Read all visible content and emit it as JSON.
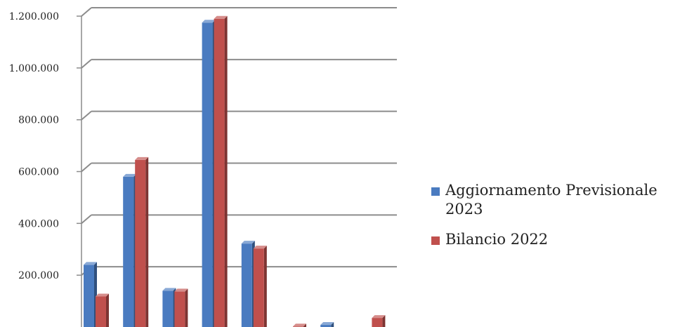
{
  "chart_data": {
    "type": "bar",
    "categories": [
      "",
      "",
      "",
      "",
      "",
      "",
      "",
      ""
    ],
    "series": [
      {
        "name": "Aggiornamento Previsionale 2023",
        "color": "#4a7bc0",
        "values": [
          240000,
          580000,
          140000,
          1175000,
          322000,
          0,
          8000,
          0
        ]
      },
      {
        "name": "Bilancio 2022",
        "color": "#c0504d",
        "values": [
          118000,
          645000,
          137000,
          1190000,
          303000,
          2000,
          0,
          35000
        ]
      }
    ],
    "y_ticks": [
      "200.000",
      "400.000",
      "600.000",
      "800.000",
      "1.000.000",
      "1.200.000"
    ],
    "y_tick_values": [
      200000,
      400000,
      600000,
      800000,
      1000000,
      1200000
    ],
    "ylim": [
      0,
      1200000
    ],
    "grid": true,
    "legend_position": "right",
    "title": "",
    "xlabel": "",
    "ylabel": ""
  }
}
